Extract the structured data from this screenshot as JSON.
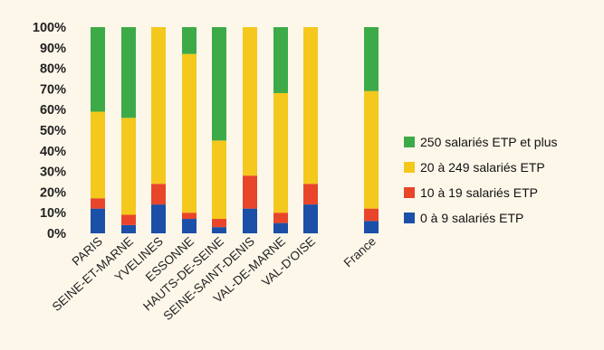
{
  "chart_data": {
    "type": "bar",
    "stacked": true,
    "percent": true,
    "categories": [
      "PARIS",
      "SEINE-ET-MARNE",
      "YVELINES",
      "ESSONNE",
      "HAUTS-DE-SEINE",
      "SEINE-SAINT-DENIS",
      "VAL-DE-MARNE",
      "VAL-D'OISE",
      "France"
    ],
    "series": [
      {
        "name": "0 à 9 salariés ETP",
        "color": "#1b4fa8",
        "values": [
          12,
          4,
          14,
          7,
          3,
          12,
          5,
          14,
          6
        ]
      },
      {
        "name": "10 à 19 salariés ETP",
        "color": "#e8452a",
        "values": [
          5,
          5,
          10,
          3,
          4,
          16,
          5,
          10,
          6
        ]
      },
      {
        "name": "20 à 249 salariés ETP",
        "color": "#f4c81c",
        "values": [
          42,
          47,
          76,
          77,
          38,
          72,
          58,
          76,
          57
        ]
      },
      {
        "name": "250 salariés ETP et plus",
        "color": "#3daa48",
        "values": [
          41,
          44,
          0,
          13,
          55,
          0,
          32,
          0,
          31
        ]
      }
    ],
    "yticks": [
      "0%",
      "10%",
      "20%",
      "30%",
      "40%",
      "50%",
      "60%",
      "70%",
      "80%",
      "90%",
      "100%"
    ],
    "ylim": [
      0,
      100
    ],
    "title": "",
    "xlabel": "",
    "ylabel": "",
    "grid": false,
    "legend_position": "right"
  }
}
